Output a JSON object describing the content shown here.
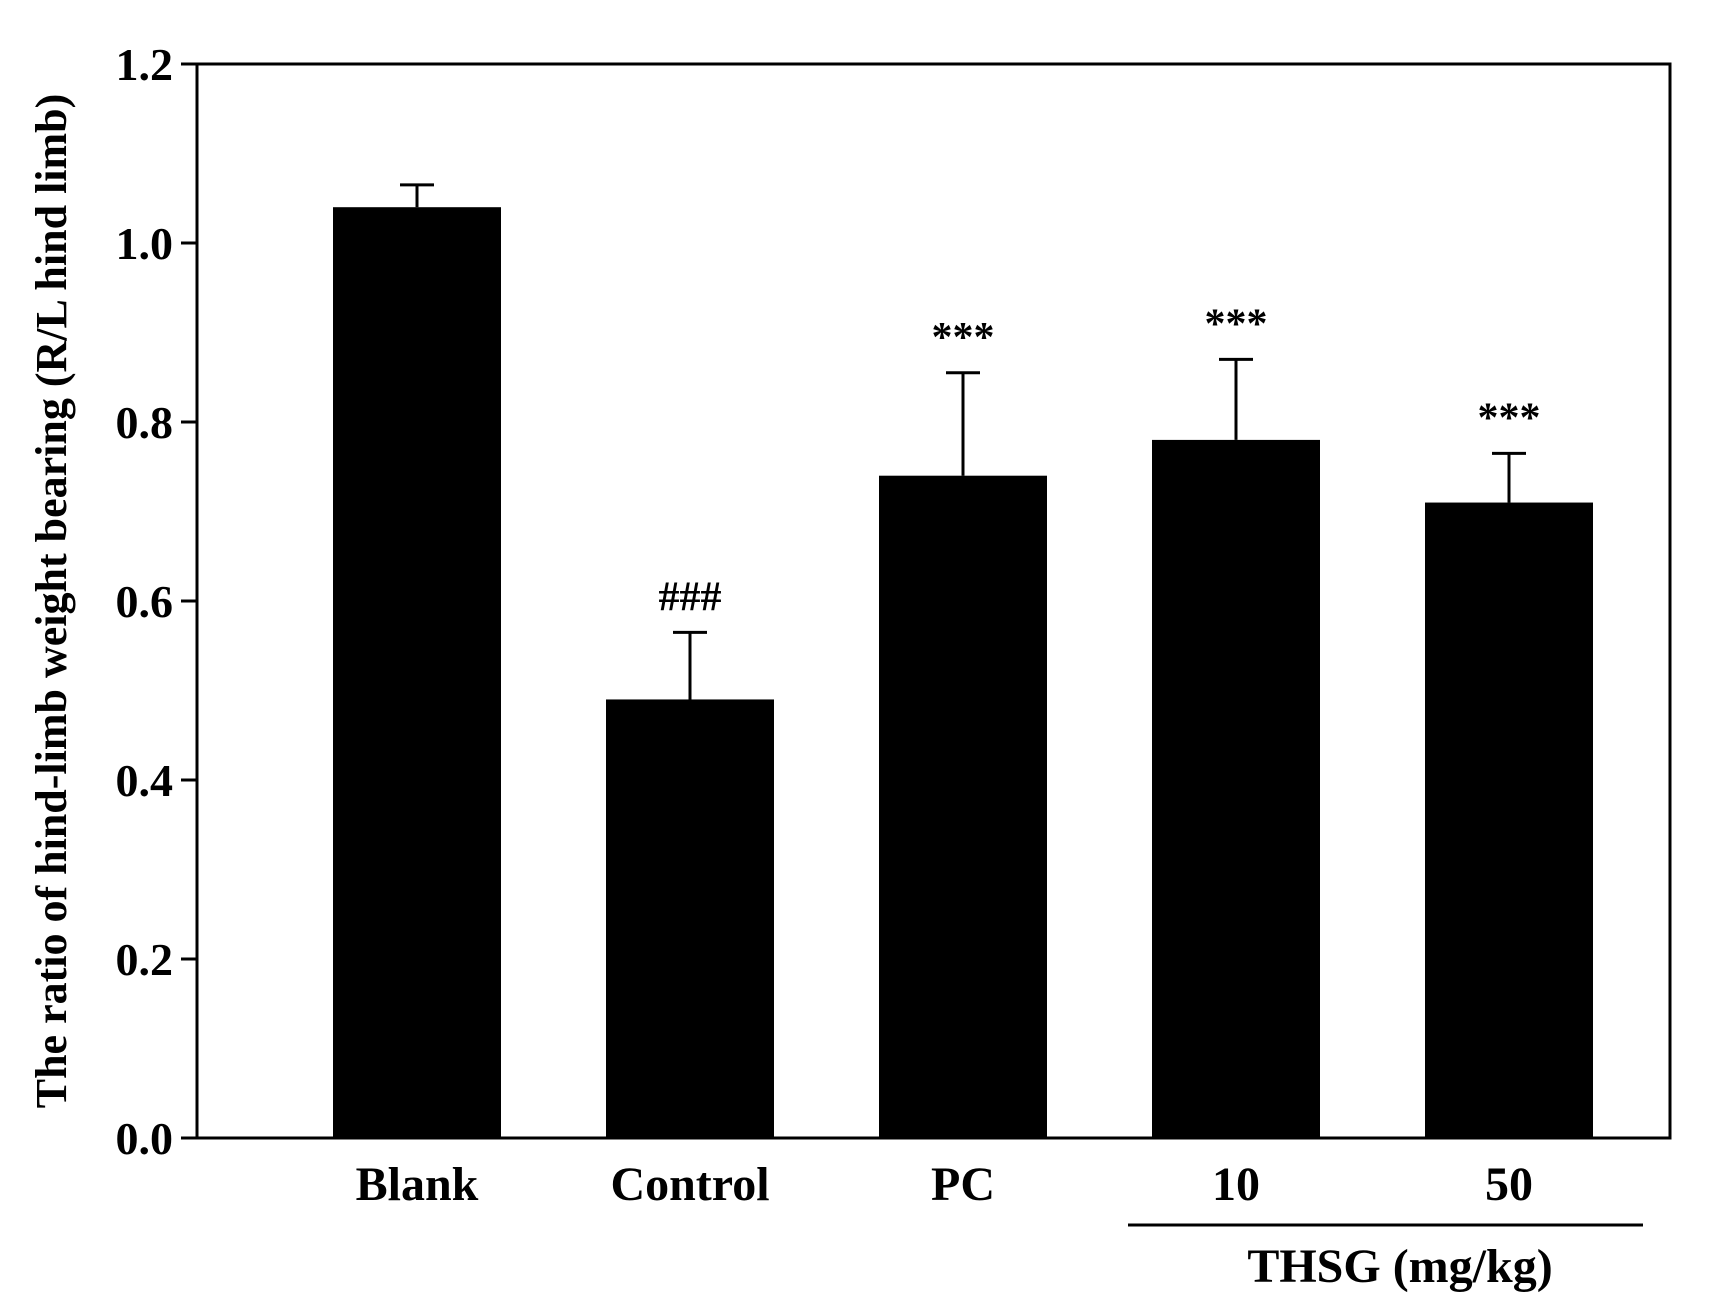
{
  "chart_data": {
    "type": "bar",
    "title": "",
    "xlabel": "",
    "ylabel": "The ratio of hind-limb weight bearing (R/L hind limb)",
    "ylim": [
      0,
      1.2
    ],
    "yticks": [
      "0.0",
      "0.2",
      "0.4",
      "0.6",
      "0.8",
      "1.0",
      "1.2"
    ],
    "categories": [
      "Blank",
      "Control",
      "PC",
      "10",
      "50"
    ],
    "values": [
      1.04,
      0.49,
      0.74,
      0.78,
      0.71
    ],
    "errors": [
      0.025,
      0.075,
      0.115,
      0.09,
      0.055
    ],
    "annotations": [
      "",
      "###",
      "***",
      "***",
      "***"
    ],
    "group_label": "THSG (mg/kg)",
    "bar_color": "#000000",
    "grid": false
  }
}
